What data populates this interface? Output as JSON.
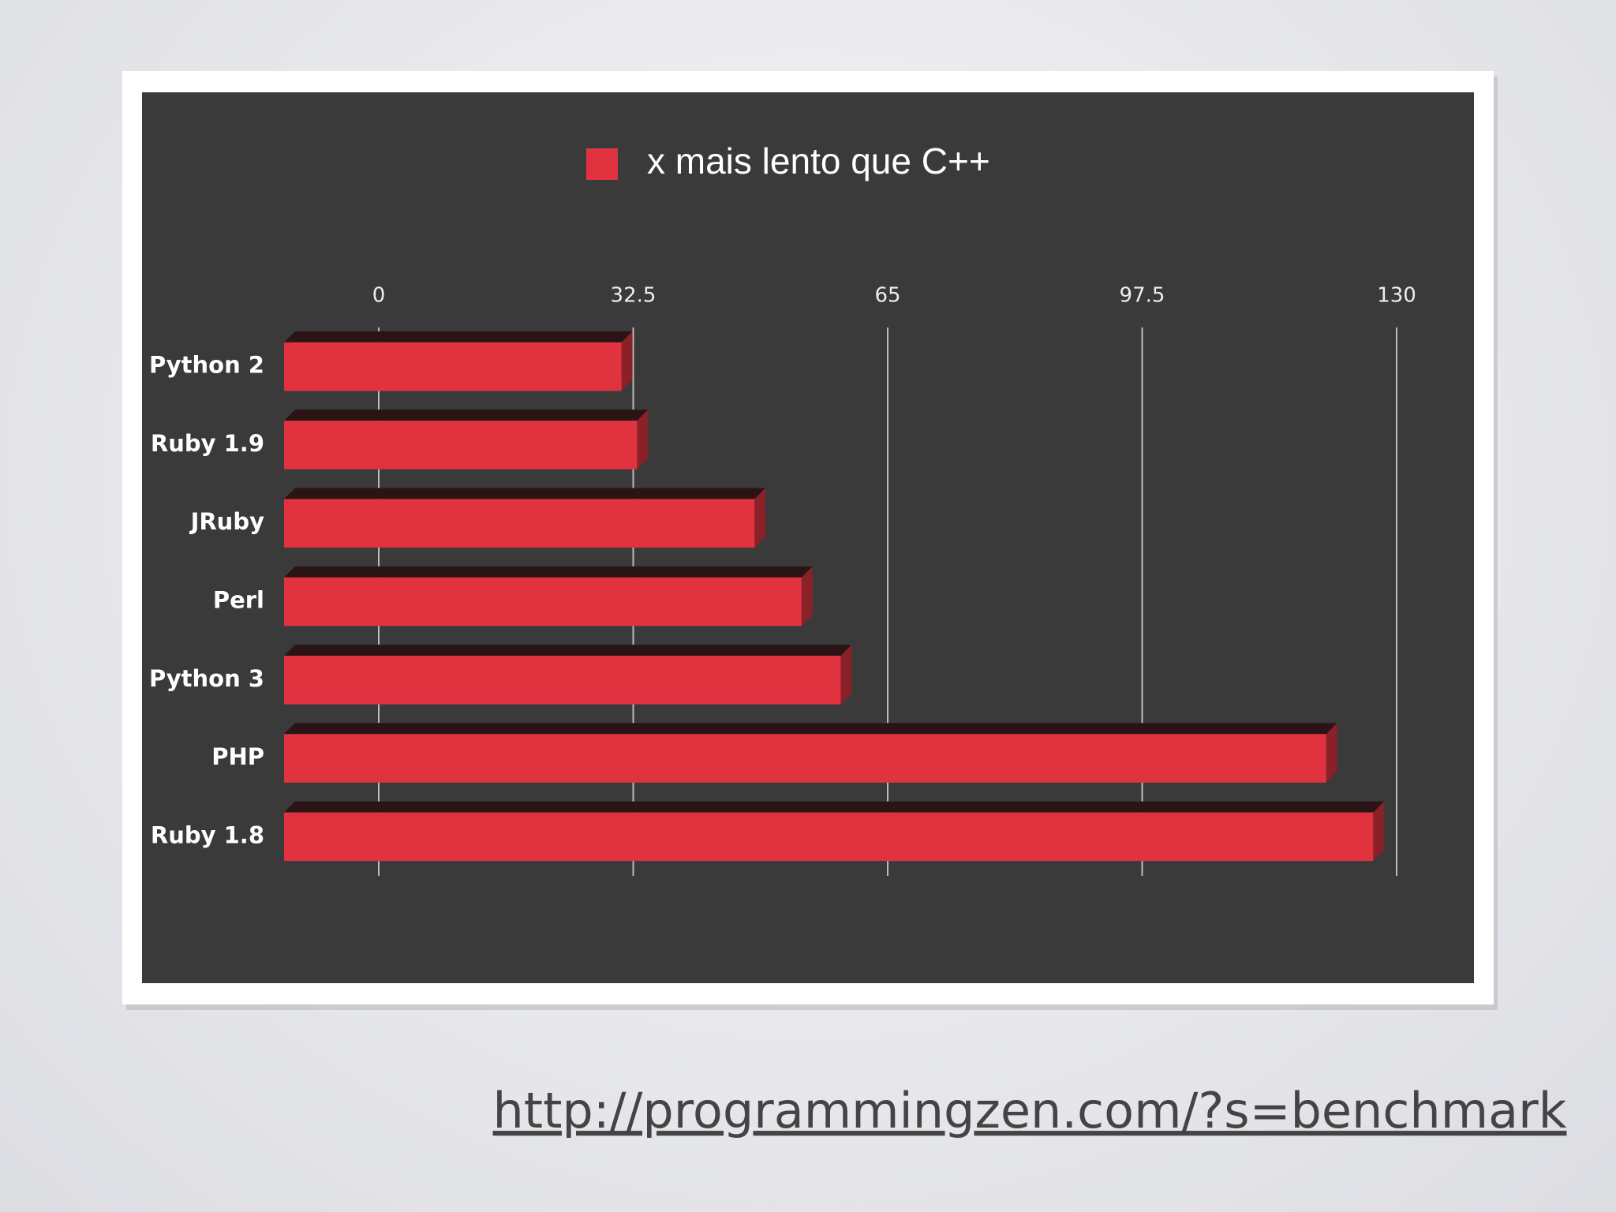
{
  "chart_data": {
    "type": "bar",
    "orientation": "horizontal",
    "categories": [
      "Python 2",
      "Ruby 1.9",
      "JRuby",
      "Perl",
      "Python 3",
      "PHP",
      "Ruby 1.8"
    ],
    "series": [
      {
        "name": "x mais lento que C++",
        "color": "#e0333f",
        "values": [
          31,
          33,
          48,
          54,
          59,
          121,
          127
        ]
      }
    ],
    "xlim": [
      0,
      130
    ],
    "xticks": [
      0,
      32.5,
      65,
      97.5,
      130
    ],
    "grid": true,
    "legend": "top"
  },
  "footer_link": "http://programmingzen.com/?s=benchmark"
}
